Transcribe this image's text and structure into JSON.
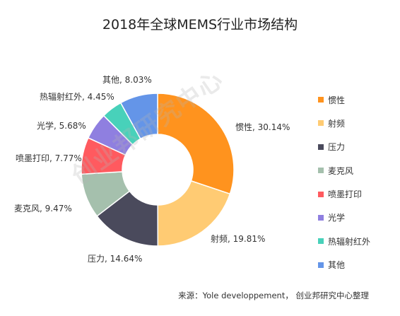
{
  "chart_data": {
    "type": "pie",
    "title": "2018年全球MEMS行业市场结构",
    "donut": true,
    "categories": [
      "惯性",
      "射频",
      "压力",
      "麦克风",
      "喷墨打印",
      "光学",
      "热辐射红外",
      "其他"
    ],
    "values": [
      30.14,
      19.81,
      14.64,
      9.47,
      7.77,
      5.68,
      4.45,
      8.03
    ],
    "data_labels": [
      "惯性, 30.14%",
      "射频, 19.81%",
      "压力, 14.64%",
      "麦克风, 9.47%",
      "喷墨打印, 7.77%",
      "光学, 5.68%",
      "热辐射红外, 4.45%",
      "其他, 8.03%"
    ],
    "colors": [
      "#FF931E",
      "#FFCB73",
      "#4A4A5C",
      "#A5C0AD",
      "#FF5A5F",
      "#8F7FE0",
      "#48D1BA",
      "#6495E8"
    ],
    "legend": "right"
  },
  "source": "来源：Yole developpement， 创业邦研究中心整理",
  "watermark": "创业邦研究中心"
}
